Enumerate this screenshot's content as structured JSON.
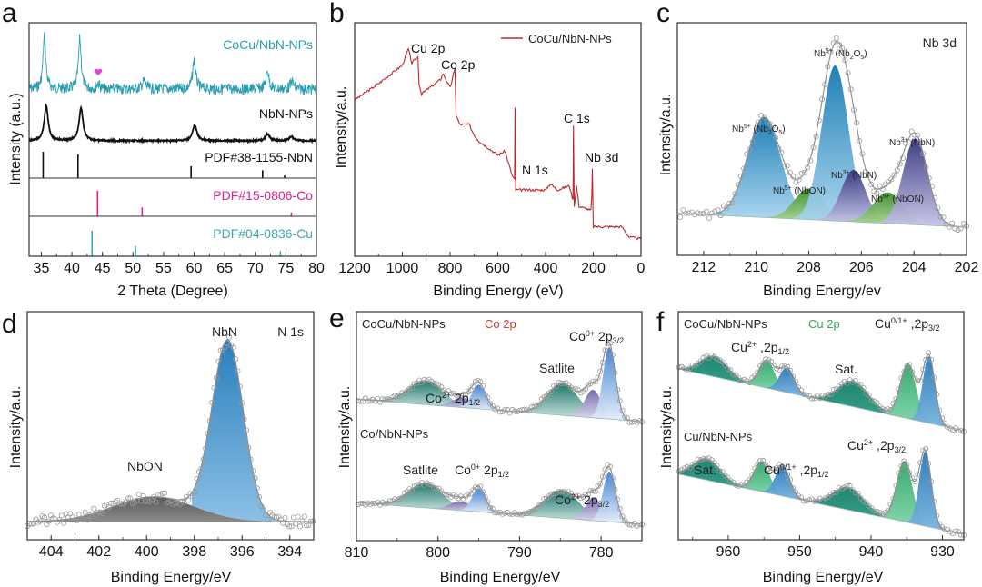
{
  "chart_data": [
    {
      "panel": "a",
      "type": "line",
      "xlabel": "2 Theta (Degree)",
      "ylabel": "Intensity (a.u.)",
      "xlim": [
        33,
        80
      ],
      "xticks": [
        35,
        40,
        45,
        50,
        55,
        60,
        65,
        70,
        75,
        80
      ],
      "series": [
        {
          "name": "CoCu/NbN-NPs",
          "color": "#2a9db0",
          "peaks": [
            [
              35.5,
              1.0,
              0.45
            ],
            [
              41.3,
              0.95,
              0.45
            ],
            [
              44.3,
              0.12,
              0.4
            ],
            [
              51.8,
              0.15,
              0.6
            ],
            [
              60.0,
              0.55,
              0.5
            ],
            [
              72.0,
              0.35,
              0.5
            ],
            [
              76.0,
              0.15,
              0.5
            ]
          ],
          "marker": {
            "symbol": "heart",
            "x": 44.3,
            "color": "#e040e0"
          }
        },
        {
          "name": "NbN-NPs",
          "color": "#111111",
          "peaks": [
            [
              35.8,
              1.0,
              0.55
            ],
            [
              41.5,
              0.95,
              0.55
            ],
            [
              60.1,
              0.45,
              0.6
            ],
            [
              72.0,
              0.2,
              0.6
            ],
            [
              75.9,
              0.12,
              0.6
            ]
          ]
        }
      ],
      "references": [
        {
          "name": "PDF#38-1155-NbN",
          "color": "#111111",
          "lines": [
            [
              35.3,
              1.0
            ],
            [
              41.0,
              0.9
            ],
            [
              59.5,
              0.45
            ],
            [
              71.2,
              0.3
            ],
            [
              74.8,
              0.1
            ]
          ]
        },
        {
          "name": "PDF#15-0806-Co",
          "color": "#e0208a",
          "lines": [
            [
              44.2,
              1.0
            ],
            [
              51.5,
              0.35
            ],
            [
              75.9,
              0.15
            ]
          ]
        },
        {
          "name": "PDF#04-0836-Cu",
          "color": "#3aaab0",
          "lines": [
            [
              43.3,
              1.0
            ],
            [
              50.4,
              0.4
            ],
            [
              74.1,
              0.2
            ]
          ]
        }
      ]
    },
    {
      "panel": "b",
      "type": "line",
      "xlabel": "Binding Energy (eV)",
      "ylabel": "Intensity/a.u.",
      "xlim": [
        1200,
        0
      ],
      "xticks": [
        1200,
        1000,
        800,
        600,
        400,
        200,
        0
      ],
      "legend": {
        "entries": [
          "CoCu/NbN-NPs"
        ],
        "position": "top-right"
      },
      "series": [
        {
          "name": "CoCu/NbN-NPs",
          "color": "#c0262b"
        }
      ],
      "annotations": [
        {
          "text": "Cu 2p",
          "x": 932
        },
        {
          "text": "Co 2p",
          "x": 780
        },
        {
          "text": "C 1s",
          "x": 284
        },
        {
          "text": "N 1s",
          "x": 397
        },
        {
          "text": "Nb 3d",
          "x": 205
        }
      ],
      "survey_points": [
        [
          1200,
          0.72
        ],
        [
          1100,
          0.8
        ],
        [
          1000,
          0.89
        ],
        [
          975,
          0.97
        ],
        [
          960,
          0.9
        ],
        [
          935,
          0.93
        ],
        [
          930,
          0.8
        ],
        [
          920,
          0.75
        ],
        [
          840,
          0.82
        ],
        [
          830,
          0.85
        ],
        [
          800,
          0.78
        ],
        [
          780,
          0.87
        ],
        [
          775,
          0.65
        ],
        [
          760,
          0.6
        ],
        [
          720,
          0.6
        ],
        [
          700,
          0.55
        ],
        [
          680,
          0.52
        ],
        [
          600,
          0.45
        ],
        [
          570,
          0.47
        ],
        [
          540,
          0.35
        ],
        [
          530,
          0.33
        ],
        [
          528,
          0.68
        ],
        [
          525,
          0.28
        ],
        [
          450,
          0.28
        ],
        [
          400,
          0.28
        ],
        [
          380,
          0.31
        ],
        [
          350,
          0.28
        ],
        [
          300,
          0.3
        ],
        [
          285,
          0.23
        ],
        [
          283,
          0.6
        ],
        [
          280,
          0.2
        ],
        [
          270,
          0.3
        ],
        [
          260,
          0.2
        ],
        [
          210,
          0.18
        ],
        [
          206,
          0.25
        ],
        [
          204,
          0.38
        ],
        [
          200,
          0.1
        ],
        [
          150,
          0.1
        ],
        [
          80,
          0.1
        ],
        [
          50,
          0.05
        ],
        [
          0,
          0.04
        ]
      ]
    },
    {
      "panel": "c",
      "type": "area",
      "title": "Nb 3d",
      "xlabel": "Binding Energy/ev",
      "ylabel": "Intensity/a.u.",
      "xlim": [
        213,
        202
      ],
      "xticks": [
        212,
        210,
        208,
        206,
        204,
        202
      ],
      "baseline": [
        [
          213,
          0.08
        ],
        [
          202,
          0.0
        ]
      ],
      "components": [
        {
          "label": "Nb5+ (Nb2O5)",
          "center": 209.7,
          "height": 0.58,
          "fwhm": 1.5,
          "color": "#1f88c0"
        },
        {
          "label": "Nb5+ (NbON)",
          "center": 208.0,
          "height": 0.18,
          "fwhm": 1.3,
          "color": "#5aa845"
        },
        {
          "label": "Nb5+ (Nb2O5)",
          "center": 207.0,
          "height": 0.9,
          "fwhm": 1.2,
          "color": "#1f88c0"
        },
        {
          "label": "Nb3+ (NbN)",
          "center": 206.3,
          "height": 0.3,
          "fwhm": 1.1,
          "color": "#4a4d9a"
        },
        {
          "label": "Nb5+ (NbON)",
          "center": 205.0,
          "height": 0.18,
          "fwhm": 1.3,
          "color": "#5aa845"
        },
        {
          "label": "Nb3+ (NbN)",
          "center": 203.95,
          "height": 0.5,
          "fwhm": 1.1,
          "color": "#4a4d9a"
        }
      ]
    },
    {
      "panel": "d",
      "type": "area",
      "title": "N 1s",
      "xlabel": "Binding Energy/eV",
      "ylabel": "Intensity/a.u.",
      "xlim": [
        405,
        393
      ],
      "xticks": [
        404,
        402,
        400,
        398,
        396,
        394
      ],
      "baseline": [
        [
          405,
          0.0
        ],
        [
          393,
          0.0
        ]
      ],
      "components": [
        {
          "label": "NbON",
          "center": 399.7,
          "height": 0.14,
          "fwhm": 4.0,
          "color": "#6a6a6a"
        },
        {
          "label": "NbN",
          "center": 396.6,
          "height": 1.0,
          "fwhm": 1.55,
          "color": "#3b8cc8"
        }
      ]
    },
    {
      "panel": "e",
      "type": "area",
      "title": "Co 2p",
      "title_color": "#d23a2a",
      "xlabel": "Binding Energy/eV",
      "ylabel": "Intensity/a.u.",
      "xlim": [
        810,
        775
      ],
      "xticks": [
        810,
        800,
        790,
        780
      ],
      "spectra": [
        {
          "name": "CoCu/NbN-NPs",
          "components": [
            {
              "label": "Satlite",
              "center": 801.5,
              "height": 0.3,
              "fwhm": 5.0,
              "color": "#1e7a6e"
            },
            {
              "label": "Co2+ 2p1/2",
              "center": 797.0,
              "height": 0.12,
              "fwhm": 3.0,
              "color": "#7d72b0"
            },
            {
              "label": "Co0+ 2p1/2",
              "center": 795.0,
              "height": 0.3,
              "fwhm": 2.0,
              "color": "#5b8fd0"
            },
            {
              "label": "Satlite",
              "center": 784.7,
              "height": 0.4,
              "fwhm": 4.5,
              "color": "#1e7a6e"
            },
            {
              "label": "Co2+ 2p3/2",
              "center": 781.0,
              "height": 0.35,
              "fwhm": 2.4,
              "color": "#7d72b0"
            },
            {
              "label": "Co0+ 2p3/2",
              "center": 779.0,
              "height": 0.9,
              "fwhm": 1.8,
              "color": "#5b8fd0"
            }
          ]
        },
        {
          "name": "Co/NbN-NPs",
          "components": [
            {
              "label": "Satlite",
              "center": 801.5,
              "height": 0.32,
              "fwhm": 5.0,
              "color": "#1e7a6e"
            },
            {
              "label": "Co2+ 2p1/2",
              "center": 797.2,
              "height": 0.12,
              "fwhm": 3.0,
              "color": "#7d72b0"
            },
            {
              "label": "Co0+ 2p1/2",
              "center": 795.0,
              "height": 0.3,
              "fwhm": 2.0,
              "color": "#5b8fd0"
            },
            {
              "label": "Satlite",
              "center": 784.8,
              "height": 0.36,
              "fwhm": 5.0,
              "color": "#1e7a6e"
            },
            {
              "label": "Co2+ 2p3/2",
              "center": 780.9,
              "height": 0.3,
              "fwhm": 2.4,
              "color": "#7d72b0"
            },
            {
              "label": "Co0+ 2p3/2",
              "center": 779.0,
              "height": 0.65,
              "fwhm": 1.8,
              "color": "#5b8fd0"
            }
          ]
        }
      ],
      "annotations": [
        "CoCu/NbN-NPs",
        "Co/NbN-NPs",
        "Co0+ 2p3/2",
        "Satlite",
        "Co2+ 2p1/2",
        "Satlite",
        "Co0+ 2p1/2",
        "Co2+ 2p3/2"
      ]
    },
    {
      "panel": "f",
      "type": "area",
      "title": "Cu 2p",
      "title_color": "#2aaa55",
      "xlabel": "Binding Energy/eV",
      "ylabel": "Intensity/a.u.",
      "xlim": [
        967,
        927
      ],
      "xticks": [
        960,
        950,
        940,
        930
      ],
      "spectra": [
        {
          "name": "CoCu/NbN-NPs",
          "components": [
            {
              "label": "Sat.",
              "center": 962.0,
              "height": 0.28,
              "fwhm": 4.5,
              "color": "#1e8a70"
            },
            {
              "label": "Cu2+ 2p1/2",
              "center": 954.6,
              "height": 0.38,
              "fwhm": 2.6,
              "color": "#3fb57a"
            },
            {
              "label": "Cu0/1+ 2p1/2",
              "center": 951.8,
              "height": 0.34,
              "fwhm": 2.4,
              "color": "#3a86c0"
            },
            {
              "label": "Sat.",
              "center": 942.5,
              "height": 0.35,
              "fwhm": 5.0,
              "color": "#1e8a70"
            },
            {
              "label": "Cu2+ 2p3/2",
              "center": 934.8,
              "height": 0.75,
              "fwhm": 2.6,
              "color": "#3fb57a"
            },
            {
              "label": "Cu0/1+ 2p3/2",
              "center": 931.9,
              "height": 0.92,
              "fwhm": 2.0,
              "color": "#3a86c0"
            }
          ]
        },
        {
          "name": "Cu/NbN-NPs",
          "components": [
            {
              "label": "Sat.",
              "center": 963.0,
              "height": 0.3,
              "fwhm": 4.5,
              "color": "#1e8a70"
            },
            {
              "label": "Cu2+ 2p1/2",
              "center": 955.3,
              "height": 0.42,
              "fwhm": 2.6,
              "color": "#3fb57a"
            },
            {
              "label": "Cu0/1+ 2p1/2",
              "center": 952.4,
              "height": 0.42,
              "fwhm": 2.4,
              "color": "#3a86c0"
            },
            {
              "label": "Sat.",
              "center": 943.2,
              "height": 0.32,
              "fwhm": 5.0,
              "color": "#1e8a70"
            },
            {
              "label": "Cu2+ 2p3/2",
              "center": 935.3,
              "height": 0.85,
              "fwhm": 2.6,
              "color": "#3fb57a"
            },
            {
              "label": "Cu0/1+ 2p3/2",
              "center": 932.4,
              "height": 1.05,
              "fwhm": 2.0,
              "color": "#3a86c0"
            }
          ]
        }
      ],
      "annotations": [
        "CoCu/NbN-NPs",
        "Cu/NbN-NPs",
        "Cu0/1+ ,2p3/2",
        "Cu2+ ,2p1/2",
        "Sat.",
        "Sat.",
        "Cu0/1+ ,2p1/2",
        "Cu2+ ,2p3/2"
      ]
    }
  ],
  "labels": {
    "panel_letters": [
      "a",
      "b",
      "c",
      "d",
      "e",
      "f"
    ],
    "a": {
      "s1": "CoCu/NbN-NPs",
      "s2": "NbN-NPs",
      "r1": "PDF#38-1155-NbN",
      "r2": "PDF#15-0806-Co",
      "r3": "PDF#04-0836-Cu",
      "xlabel": "2 Theta (Degree)",
      "ylabel": "Intensity (a.u.)"
    },
    "b": {
      "legend": "CoCu/NbN-NPs",
      "cu": "Cu 2p",
      "co": "Co 2p",
      "c": "C 1s",
      "n": "N 1s",
      "nb": "Nb 3d",
      "xlabel": "Binding Energy (eV)",
      "ylabel": "Intensity/a.u."
    },
    "c": {
      "title": "Nb 3d",
      "nb": "Nb",
      "xlabel": "Binding Energy/ev",
      "ylabel": "Intensity/a.u."
    },
    "d": {
      "title": "N 1s",
      "nbn": "NbN",
      "nbon": "NbON",
      "xlabel": "Binding Energy/eV",
      "ylabel": "Intensity/a.u."
    },
    "e": {
      "s1": "CoCu/NbN-NPs",
      "title": "Co 2p",
      "s2": "Co/NbN-NPs",
      "sat": "Satlite",
      "xlabel": "Binding Energy/eV",
      "ylabel": "Intensity/a.u."
    },
    "f": {
      "s1": "CoCu/NbN-NPs",
      "title": "Cu 2p",
      "s2": "Cu/NbN-NPs",
      "sat": "Sat.",
      "xlabel": "Binding Energy/eV",
      "ylabel": "Intensity/a.u."
    }
  }
}
